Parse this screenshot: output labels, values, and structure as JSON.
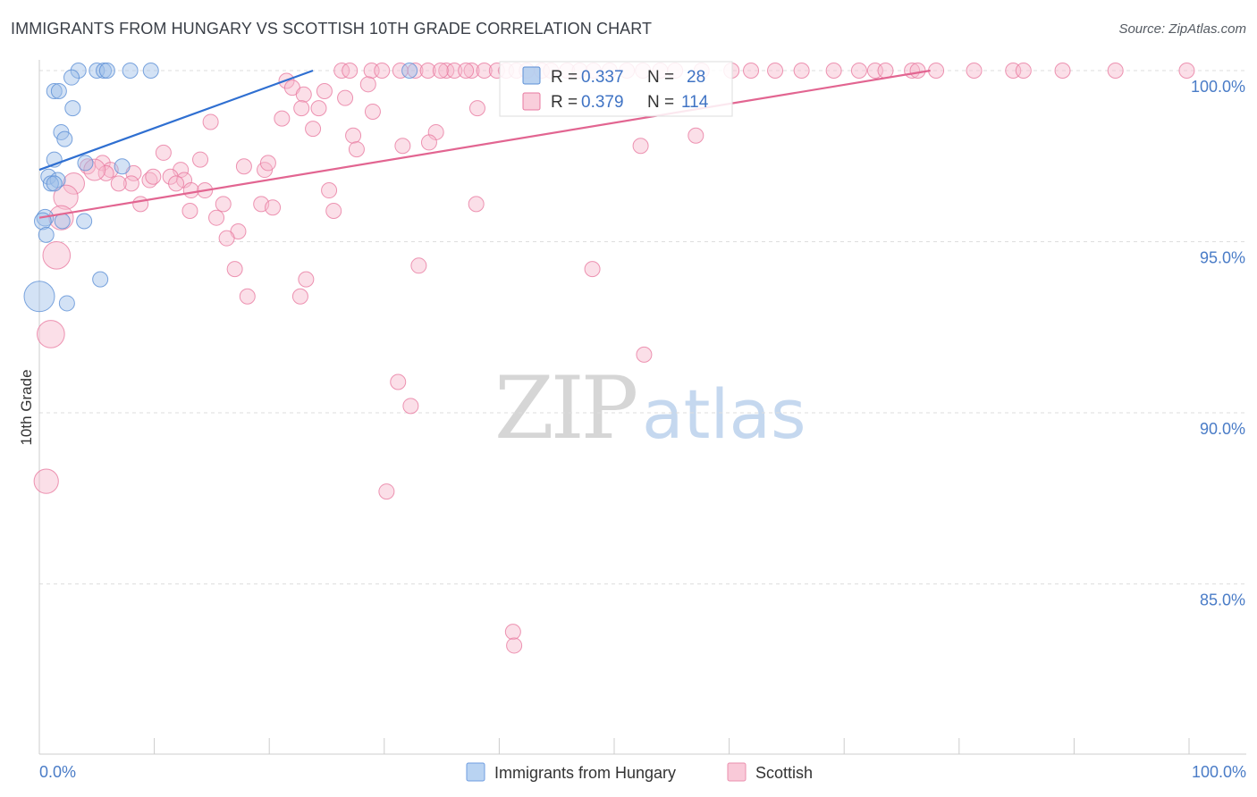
{
  "title": "IMMIGRANTS FROM HUNGARY VS SCOTTISH 10TH GRADE CORRELATION CHART",
  "source": "Source: ZipAtlas.com",
  "watermark": {
    "zip": "ZIP",
    "atlas": "atlas"
  },
  "legend": {
    "rows": [
      {
        "r_label": "R =",
        "r_value": "0.337",
        "n_label": "N =",
        "n_value": "28",
        "color": "#9dbfe9",
        "stroke": "#5b8fd6"
      },
      {
        "r_label": "R =",
        "r_value": "0.379",
        "n_label": "N =",
        "n_value": "114",
        "color": "#f7b9cc",
        "stroke": "#e87aa0"
      }
    ]
  },
  "bottom_legend": [
    {
      "label": "Immigrants from Hungary",
      "color": "#b9d3f2",
      "stroke": "#6f9de0"
    },
    {
      "label": "Scottish",
      "color": "#f9c9d8",
      "stroke": "#ea8fae"
    }
  ],
  "chart_data": {
    "type": "scatter",
    "title": "IMMIGRANTS FROM HUNGARY VS SCOTTISH 10TH GRADE CORRELATION CHART",
    "xlabel": "",
    "ylabel": "10th Grade",
    "xlim": [
      0,
      100
    ],
    "ylim": [
      80.6,
      100.6
    ],
    "x_tick_labels": [
      "0.0%",
      "100.0%"
    ],
    "y_ticks": [
      85,
      90,
      95,
      100
    ],
    "y_tick_labels": [
      "85.0%",
      "90.0%",
      "95.0%",
      "100.0%"
    ],
    "series": [
      {
        "name": "Immigrants from Hungary",
        "color": "#9dbfe9",
        "stroke": "#5b8fd6",
        "line_color": "#2f6fd1",
        "trend": {
          "x": [
            0,
            23.8
          ],
          "y": [
            97.1,
            100.0
          ]
        },
        "points": [
          {
            "x": 3.4,
            "y": 100.0,
            "s": 1
          },
          {
            "x": 5.0,
            "y": 100.0,
            "s": 1
          },
          {
            "x": 5.6,
            "y": 100.0,
            "s": 1
          },
          {
            "x": 7.9,
            "y": 100.0,
            "s": 1
          },
          {
            "x": 5.9,
            "y": 100.0,
            "s": 1
          },
          {
            "x": 9.7,
            "y": 100.0,
            "s": 1
          },
          {
            "x": 32.2,
            "y": 100.0,
            "s": 1
          },
          {
            "x": 2.8,
            "y": 99.8,
            "s": 1
          },
          {
            "x": 1.3,
            "y": 99.4,
            "s": 1
          },
          {
            "x": 1.7,
            "y": 99.4,
            "s": 1
          },
          {
            "x": 2.9,
            "y": 98.9,
            "s": 1
          },
          {
            "x": 1.9,
            "y": 98.2,
            "s": 1
          },
          {
            "x": 2.2,
            "y": 98.0,
            "s": 1
          },
          {
            "x": 1.3,
            "y": 97.4,
            "s": 1
          },
          {
            "x": 4.0,
            "y": 97.3,
            "s": 1
          },
          {
            "x": 7.2,
            "y": 97.2,
            "s": 1
          },
          {
            "x": 0.8,
            "y": 96.9,
            "s": 1
          },
          {
            "x": 1.6,
            "y": 96.8,
            "s": 1
          },
          {
            "x": 1.0,
            "y": 96.7,
            "s": 1
          },
          {
            "x": 1.3,
            "y": 96.7,
            "s": 1
          },
          {
            "x": 0.5,
            "y": 95.7,
            "s": 1.1
          },
          {
            "x": 0.3,
            "y": 95.6,
            "s": 1.1
          },
          {
            "x": 2.0,
            "y": 95.6,
            "s": 1
          },
          {
            "x": 3.9,
            "y": 95.6,
            "s": 1
          },
          {
            "x": 0.6,
            "y": 95.2,
            "s": 1
          },
          {
            "x": 5.3,
            "y": 93.9,
            "s": 1
          },
          {
            "x": 2.4,
            "y": 93.2,
            "s": 1
          },
          {
            "x": 0.0,
            "y": 93.4,
            "s": 2
          }
        ]
      },
      {
        "name": "Scottish",
        "color": "#f7b9cc",
        "stroke": "#e87aa0",
        "line_color": "#e26591",
        "trend": {
          "x": [
            0,
            77.5
          ],
          "y": [
            95.7,
            100.0
          ]
        },
        "points": [
          {
            "x": 26.3,
            "y": 100.0,
            "s": 1
          },
          {
            "x": 27.0,
            "y": 100.0,
            "s": 1
          },
          {
            "x": 28.9,
            "y": 100.0,
            "s": 1
          },
          {
            "x": 29.8,
            "y": 100.0,
            "s": 1
          },
          {
            "x": 31.4,
            "y": 100.0,
            "s": 1
          },
          {
            "x": 32.7,
            "y": 100.0,
            "s": 1
          },
          {
            "x": 33.8,
            "y": 100.0,
            "s": 1
          },
          {
            "x": 35.4,
            "y": 100.0,
            "s": 1
          },
          {
            "x": 36.1,
            "y": 100.0,
            "s": 1
          },
          {
            "x": 37.6,
            "y": 100.0,
            "s": 1
          },
          {
            "x": 38.7,
            "y": 100.0,
            "s": 1
          },
          {
            "x": 39.8,
            "y": 100.0,
            "s": 1
          },
          {
            "x": 40.6,
            "y": 100.0,
            "s": 1
          },
          {
            "x": 41.5,
            "y": 100.0,
            "s": 1
          },
          {
            "x": 42.4,
            "y": 100.0,
            "s": 1
          },
          {
            "x": 43.7,
            "y": 100.0,
            "s": 1
          },
          {
            "x": 44.5,
            "y": 100.0,
            "s": 1
          },
          {
            "x": 45.9,
            "y": 100.0,
            "s": 1
          },
          {
            "x": 47.0,
            "y": 100.0,
            "s": 1
          },
          {
            "x": 48.2,
            "y": 100.0,
            "s": 1
          },
          {
            "x": 49.6,
            "y": 100.0,
            "s": 1
          },
          {
            "x": 51.1,
            "y": 100.0,
            "s": 1
          },
          {
            "x": 52.5,
            "y": 100.0,
            "s": 1
          },
          {
            "x": 54.0,
            "y": 100.0,
            "s": 1
          },
          {
            "x": 55.3,
            "y": 100.0,
            "s": 1
          },
          {
            "x": 57.6,
            "y": 100.0,
            "s": 1
          },
          {
            "x": 60.2,
            "y": 100.0,
            "s": 1
          },
          {
            "x": 61.9,
            "y": 100.0,
            "s": 1
          },
          {
            "x": 64.0,
            "y": 100.0,
            "s": 1
          },
          {
            "x": 66.3,
            "y": 100.0,
            "s": 1
          },
          {
            "x": 69.1,
            "y": 100.0,
            "s": 1
          },
          {
            "x": 71.3,
            "y": 100.0,
            "s": 1
          },
          {
            "x": 72.7,
            "y": 100.0,
            "s": 1
          },
          {
            "x": 73.6,
            "y": 100.0,
            "s": 1
          },
          {
            "x": 75.9,
            "y": 100.0,
            "s": 1
          },
          {
            "x": 76.4,
            "y": 100.0,
            "s": 1
          },
          {
            "x": 78.0,
            "y": 100.0,
            "s": 1
          },
          {
            "x": 81.3,
            "y": 100.0,
            "s": 1
          },
          {
            "x": 84.7,
            "y": 100.0,
            "s": 1
          },
          {
            "x": 85.6,
            "y": 100.0,
            "s": 1
          },
          {
            "x": 89.0,
            "y": 100.0,
            "s": 1
          },
          {
            "x": 93.6,
            "y": 100.0,
            "s": 1
          },
          {
            "x": 99.8,
            "y": 100.0,
            "s": 1
          },
          {
            "x": 34.9,
            "y": 100.0,
            "s": 1
          },
          {
            "x": 37.1,
            "y": 100.0,
            "s": 1
          },
          {
            "x": 21.5,
            "y": 99.7,
            "s": 1
          },
          {
            "x": 22.0,
            "y": 99.5,
            "s": 1
          },
          {
            "x": 24.8,
            "y": 99.4,
            "s": 1
          },
          {
            "x": 23.0,
            "y": 99.3,
            "s": 1
          },
          {
            "x": 26.6,
            "y": 99.2,
            "s": 1
          },
          {
            "x": 28.6,
            "y": 99.6,
            "s": 1
          },
          {
            "x": 22.8,
            "y": 98.9,
            "s": 1
          },
          {
            "x": 24.3,
            "y": 98.9,
            "s": 1
          },
          {
            "x": 21.1,
            "y": 98.6,
            "s": 1
          },
          {
            "x": 29.0,
            "y": 98.8,
            "s": 1
          },
          {
            "x": 38.1,
            "y": 98.9,
            "s": 1
          },
          {
            "x": 14.9,
            "y": 98.5,
            "s": 1
          },
          {
            "x": 23.8,
            "y": 98.3,
            "s": 1
          },
          {
            "x": 27.3,
            "y": 98.1,
            "s": 1
          },
          {
            "x": 34.5,
            "y": 98.2,
            "s": 1
          },
          {
            "x": 33.9,
            "y": 97.9,
            "s": 1
          },
          {
            "x": 31.6,
            "y": 97.8,
            "s": 1
          },
          {
            "x": 27.6,
            "y": 97.7,
            "s": 1
          },
          {
            "x": 52.3,
            "y": 97.8,
            "s": 1
          },
          {
            "x": 57.1,
            "y": 98.1,
            "s": 1
          },
          {
            "x": 10.8,
            "y": 97.6,
            "s": 1
          },
          {
            "x": 14.0,
            "y": 97.4,
            "s": 1
          },
          {
            "x": 5.5,
            "y": 97.3,
            "s": 1
          },
          {
            "x": 6.2,
            "y": 97.1,
            "s": 1
          },
          {
            "x": 4.2,
            "y": 97.2,
            "s": 1
          },
          {
            "x": 5.8,
            "y": 97.0,
            "s": 1
          },
          {
            "x": 8.2,
            "y": 97.0,
            "s": 1
          },
          {
            "x": 12.3,
            "y": 97.1,
            "s": 1
          },
          {
            "x": 17.8,
            "y": 97.2,
            "s": 1
          },
          {
            "x": 19.6,
            "y": 97.1,
            "s": 1
          },
          {
            "x": 19.9,
            "y": 97.3,
            "s": 1
          },
          {
            "x": 4.8,
            "y": 97.1,
            "s": 1.4
          },
          {
            "x": 9.6,
            "y": 96.8,
            "s": 1
          },
          {
            "x": 9.9,
            "y": 96.9,
            "s": 1
          },
          {
            "x": 11.4,
            "y": 96.9,
            "s": 1
          },
          {
            "x": 12.6,
            "y": 96.8,
            "s": 1
          },
          {
            "x": 11.9,
            "y": 96.7,
            "s": 1
          },
          {
            "x": 8.0,
            "y": 96.7,
            "s": 1
          },
          {
            "x": 6.9,
            "y": 96.7,
            "s": 1
          },
          {
            "x": 13.2,
            "y": 96.5,
            "s": 1
          },
          {
            "x": 14.4,
            "y": 96.5,
            "s": 1
          },
          {
            "x": 25.2,
            "y": 96.5,
            "s": 1
          },
          {
            "x": 3.0,
            "y": 96.7,
            "s": 1.4
          },
          {
            "x": 2.3,
            "y": 96.3,
            "s": 1.6
          },
          {
            "x": 8.8,
            "y": 96.1,
            "s": 1
          },
          {
            "x": 16.0,
            "y": 96.1,
            "s": 1
          },
          {
            "x": 19.3,
            "y": 96.1,
            "s": 1
          },
          {
            "x": 20.3,
            "y": 96.0,
            "s": 1
          },
          {
            "x": 38.0,
            "y": 96.1,
            "s": 1
          },
          {
            "x": 13.1,
            "y": 95.9,
            "s": 1
          },
          {
            "x": 25.6,
            "y": 95.9,
            "s": 1
          },
          {
            "x": 15.4,
            "y": 95.7,
            "s": 1
          },
          {
            "x": 1.9,
            "y": 95.7,
            "s": 1.6
          },
          {
            "x": 17.3,
            "y": 95.3,
            "s": 1
          },
          {
            "x": 16.3,
            "y": 95.1,
            "s": 1
          },
          {
            "x": 1.5,
            "y": 94.6,
            "s": 1.8
          },
          {
            "x": 33.0,
            "y": 94.3,
            "s": 1
          },
          {
            "x": 48.1,
            "y": 94.2,
            "s": 1
          },
          {
            "x": 17.0,
            "y": 94.2,
            "s": 1
          },
          {
            "x": 23.2,
            "y": 93.9,
            "s": 1
          },
          {
            "x": 18.1,
            "y": 93.4,
            "s": 1
          },
          {
            "x": 22.7,
            "y": 93.4,
            "s": 1
          },
          {
            "x": 1.0,
            "y": 92.3,
            "s": 1.8
          },
          {
            "x": 52.6,
            "y": 91.7,
            "s": 1
          },
          {
            "x": 31.2,
            "y": 90.9,
            "s": 1
          },
          {
            "x": 32.3,
            "y": 90.2,
            "s": 1
          },
          {
            "x": 0.6,
            "y": 88.0,
            "s": 1.6
          },
          {
            "x": 30.2,
            "y": 87.7,
            "s": 1
          },
          {
            "x": 41.2,
            "y": 83.6,
            "s": 1
          },
          {
            "x": 41.3,
            "y": 83.2,
            "s": 1
          }
        ]
      }
    ]
  }
}
